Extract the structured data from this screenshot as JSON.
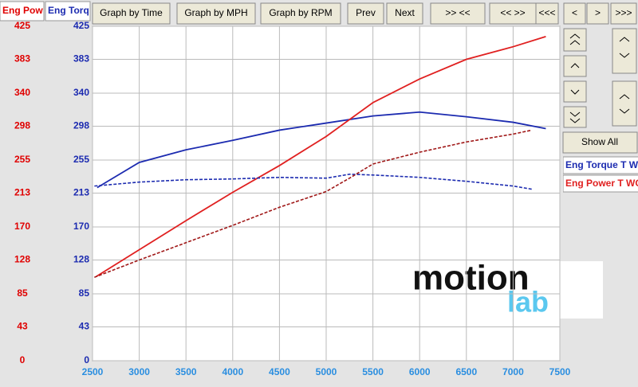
{
  "toolbar": {
    "buttons": [
      "Graph by Time",
      "Graph by MPH",
      "Graph by RPM",
      "Prev",
      "Next",
      ">> <<",
      "<< >>",
      "<<<",
      "<",
      ">",
      ">>>"
    ]
  },
  "axis_headers": {
    "left": "Eng Pow",
    "right": "Eng Torq"
  },
  "side_panel": {
    "show_all": "Show All"
  },
  "logo": {
    "line1": "motion",
    "line2": "lab"
  },
  "chart_data": {
    "type": "line",
    "xlim": [
      2500,
      7500
    ],
    "xticks": [
      2500,
      3000,
      3500,
      4000,
      4500,
      5000,
      5500,
      6000,
      6500,
      7000,
      7500
    ],
    "ylim": [
      0,
      425
    ],
    "yticks": [
      0,
      43,
      85,
      128,
      170,
      213,
      255,
      298,
      340,
      383,
      425
    ],
    "y2lim": [
      0,
      425
    ],
    "y2ticks": [
      0,
      43,
      85,
      128,
      170,
      213,
      255,
      298,
      340,
      383,
      425
    ],
    "grid": true,
    "series": [
      {
        "name": "Eng Torque T WC",
        "color": "#1c2bb0",
        "style": "solid",
        "x": [
          2550,
          3000,
          3500,
          4000,
          4500,
          5000,
          5500,
          6000,
          6500,
          7000,
          7350
        ],
        "values": [
          220,
          252,
          268,
          280,
          293,
          302,
          311,
          316,
          310,
          303,
          295
        ]
      },
      {
        "name": "Eng Power T WC",
        "color": "#e02020",
        "style": "solid",
        "x": [
          2540,
          3000,
          3500,
          4000,
          4500,
          5000,
          5500,
          6000,
          6500,
          7000,
          7350
        ],
        "values": [
          107,
          141,
          178,
          214,
          248,
          285,
          328,
          358,
          383,
          399,
          412
        ]
      },
      {
        "color": "#1c2bb0",
        "style": "dashed",
        "x": [
          2520,
          3000,
          3500,
          4000,
          4500,
          5000,
          5250,
          5500,
          6000,
          6500,
          7000,
          7200
        ],
        "values": [
          222,
          227,
          230,
          231,
          233,
          232,
          237,
          236,
          233,
          228,
          222,
          218
        ]
      },
      {
        "color": "#a01818",
        "style": "dashed",
        "x": [
          2520,
          3000,
          3500,
          4000,
          4500,
          5000,
          5250,
          5500,
          6000,
          6500,
          7000,
          7200
        ],
        "values": [
          106,
          128,
          150,
          172,
          195,
          215,
          232,
          250,
          265,
          278,
          288,
          293
        ]
      }
    ]
  }
}
